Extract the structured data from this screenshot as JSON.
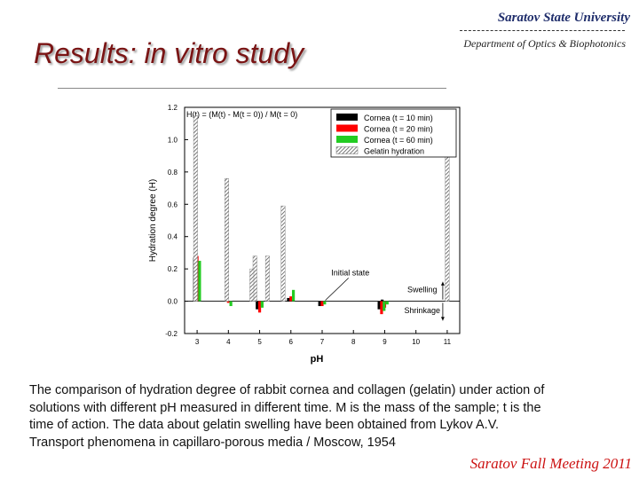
{
  "header": {
    "university": "Saratov State University",
    "separator": "---------------------------------------------",
    "department": "Department of Optics & Biophotonics",
    "slide_title": "Results: in vitro study"
  },
  "chart_data": {
    "type": "bar",
    "formula": "H(t) = (M(t) - M(t = 0)) / M(t = 0)",
    "xlabel": "pH",
    "ylabel": "Hydration degree (H)",
    "ylim": [
      -0.2,
      1.2
    ],
    "yticks": [
      "-0.2",
      "0.0",
      "0.2",
      "0.4",
      "0.6",
      "0.8",
      "1.0",
      "1.2"
    ],
    "xticks": [
      "3",
      "4",
      "5",
      "6",
      "7",
      "8",
      "9",
      "10",
      "11"
    ],
    "xlim": [
      2.6,
      11.4
    ],
    "series": [
      {
        "name": "Cornea (t = 10 min)",
        "color": "#000000",
        "pattern": "solid",
        "offset": -0.08,
        "points": [
          [
            3,
            0.27
          ],
          [
            4,
            0.0
          ],
          [
            5,
            -0.05
          ],
          [
            6,
            0.02
          ],
          [
            7,
            -0.03
          ],
          [
            8.9,
            -0.05
          ],
          [
            9,
            0.01
          ]
        ]
      },
      {
        "name": "Cornea (t = 20 min)",
        "color": "#ff0000",
        "pattern": "solid",
        "offset": 0,
        "points": [
          [
            3,
            0.28
          ],
          [
            4,
            -0.01
          ],
          [
            5,
            -0.07
          ],
          [
            6,
            0.03
          ],
          [
            7,
            -0.03
          ],
          [
            8.9,
            -0.08
          ],
          [
            9,
            -0.04
          ]
        ]
      },
      {
        "name": "Cornea (t = 60 min)",
        "color": "#22cc22",
        "pattern": "solid",
        "offset": 0.08,
        "points": [
          [
            3,
            0.25
          ],
          [
            4,
            -0.03
          ],
          [
            5,
            -0.04
          ],
          [
            6,
            0.07
          ],
          [
            7,
            -0.02
          ],
          [
            8.9,
            -0.06
          ],
          [
            9,
            -0.02
          ]
        ]
      },
      {
        "name": "Gelatin hydration",
        "color": "#888888",
        "pattern": "hatch",
        "offset": 0,
        "points": [
          [
            2.95,
            1.15
          ],
          [
            3.95,
            0.76
          ],
          [
            4.85,
            0.28
          ],
          [
            5.75,
            0.59
          ],
          [
            5.25,
            0.28
          ],
          [
            4.75,
            0.2
          ],
          [
            11,
            0.92
          ]
        ]
      }
    ],
    "annotations": [
      {
        "text": "Initial state",
        "x": 7.9,
        "y": 0.16
      },
      {
        "text": "Swelling",
        "x": 10.2,
        "y": 0.055
      },
      {
        "text": "Shrinkage",
        "x": 10.2,
        "y": -0.075
      }
    ]
  },
  "caption": {
    "line1": "The comparison of hydration degree of rabbit cornea and collagen (gelatin) under action of",
    "line2": "solutions with different pH measured in different time. M is the mass of the sample; t is the",
    "line3": "time of action. The data about gelatin swelling have been obtained from Lykov A.V.",
    "line4": "Transport phenomena in capillaro-porous media / Moscow, 1954"
  },
  "footer": "Saratov Fall Meeting 2011"
}
